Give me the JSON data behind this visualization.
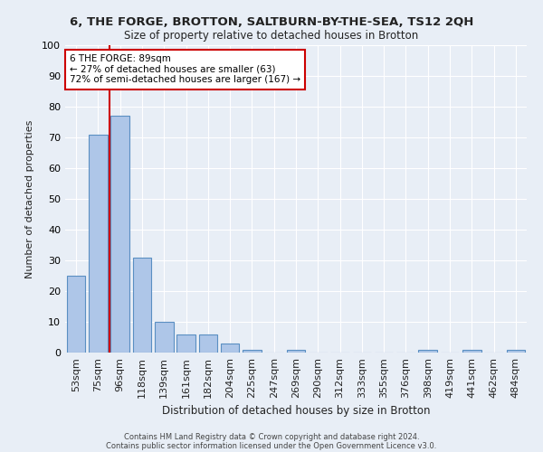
{
  "title1": "6, THE FORGE, BROTTON, SALTBURN-BY-THE-SEA, TS12 2QH",
  "title2": "Size of property relative to detached houses in Brotton",
  "xlabel": "Distribution of detached houses by size in Brotton",
  "ylabel": "Number of detached properties",
  "categories": [
    "53sqm",
    "75sqm",
    "96sqm",
    "118sqm",
    "139sqm",
    "161sqm",
    "182sqm",
    "204sqm",
    "225sqm",
    "247sqm",
    "269sqm",
    "290sqm",
    "312sqm",
    "333sqm",
    "355sqm",
    "376sqm",
    "398sqm",
    "419sqm",
    "441sqm",
    "462sqm",
    "484sqm"
  ],
  "values": [
    25,
    71,
    77,
    31,
    10,
    6,
    6,
    3,
    1,
    0,
    1,
    0,
    0,
    0,
    0,
    0,
    1,
    0,
    1,
    0,
    1
  ],
  "bar_color": "#aec6e8",
  "bar_edge_color": "#5a8fc2",
  "annotation_line1": "6 THE FORGE: 89sqm",
  "annotation_line2": "← 27% of detached houses are smaller (63)",
  "annotation_line3": "72% of semi-detached houses are larger (167) →",
  "annotation_box_color": "#ffffff",
  "annotation_box_edge": "#cc0000",
  "vline_color": "#cc0000",
  "background_color": "#e8eef6",
  "grid_color": "#ffffff",
  "ylim": [
    0,
    100
  ],
  "footer1": "Contains HM Land Registry data © Crown copyright and database right 2024.",
  "footer2": "Contains public sector information licensed under the Open Government Licence v3.0."
}
